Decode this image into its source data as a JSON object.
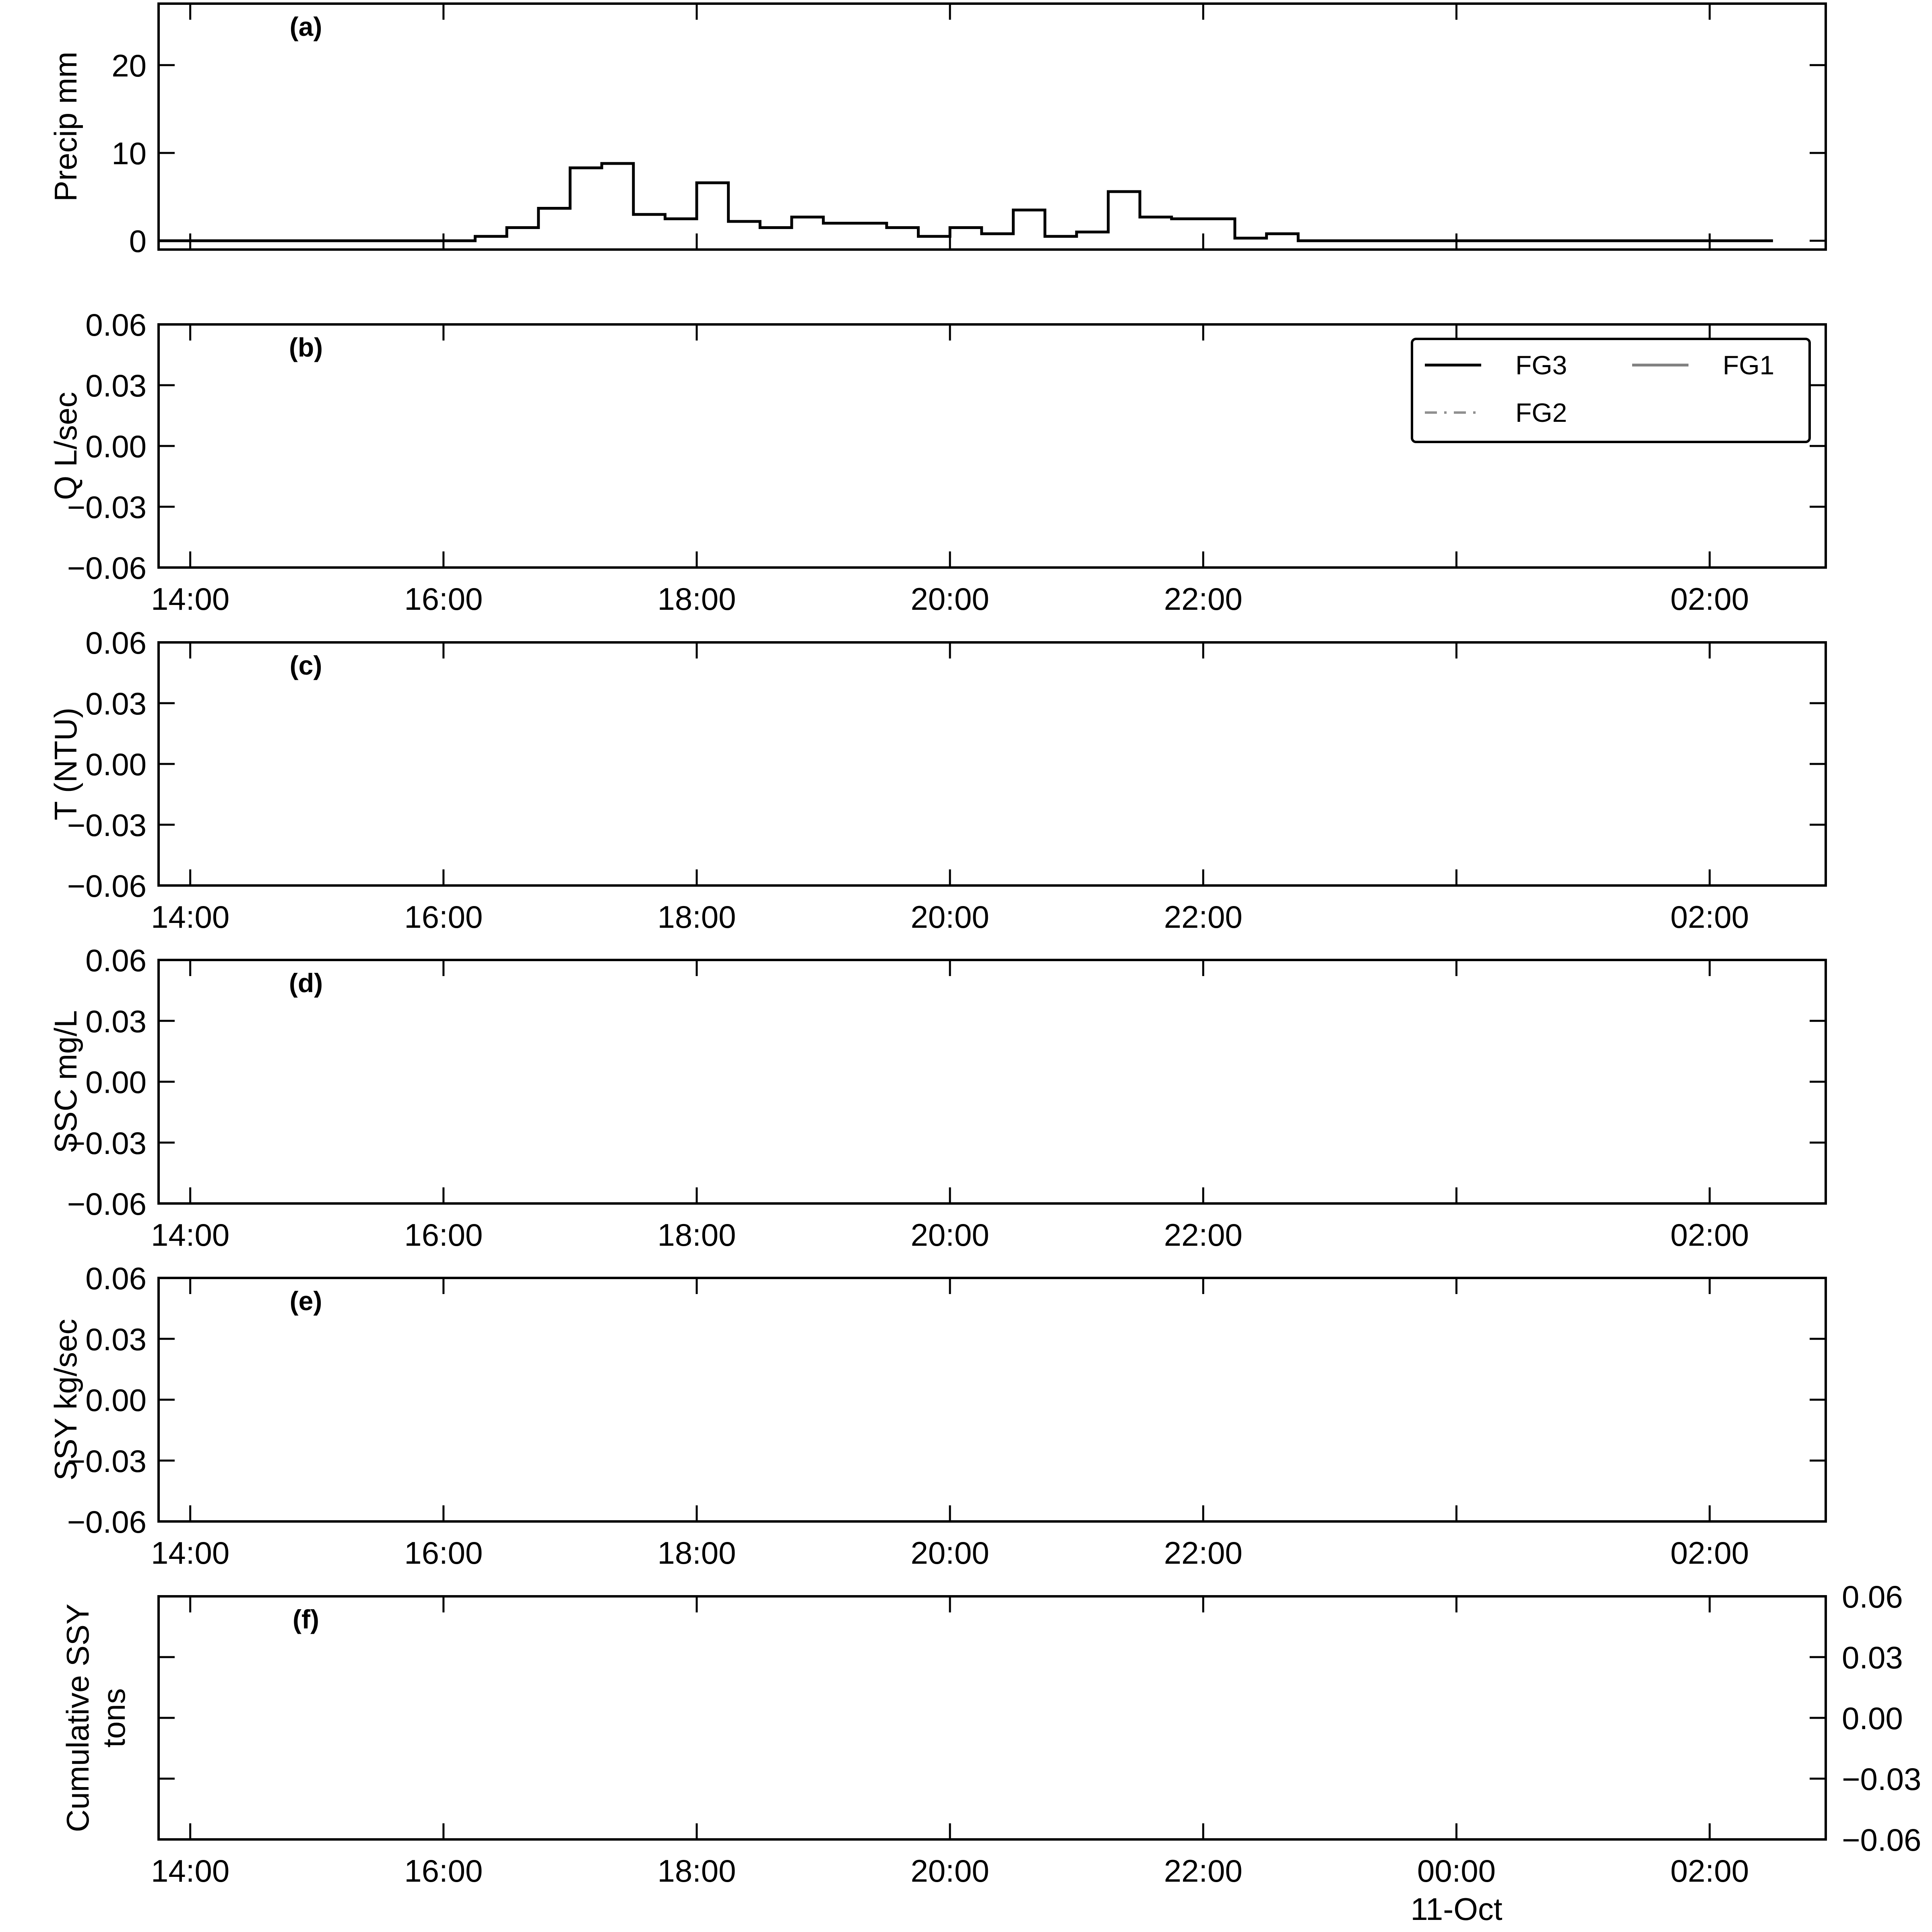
{
  "chart_data": [
    {
      "panel": "(a)",
      "type": "step",
      "ylabel": "Precip mm",
      "ylim": [
        -1,
        27
      ],
      "yticks": [
        "0",
        "10",
        "20"
      ],
      "xlim": [
        "13:45",
        "02:55"
      ],
      "x": [
        "13:45",
        "14:00",
        "14:15",
        "14:30",
        "14:45",
        "15:00",
        "15:15",
        "15:30",
        "15:45",
        "16:00",
        "16:15",
        "16:30",
        "16:45",
        "17:00",
        "17:15",
        "17:30",
        "17:45",
        "18:00",
        "18:15",
        "18:30",
        "18:45",
        "19:00",
        "19:15",
        "19:30",
        "19:45",
        "20:00",
        "20:15",
        "20:30",
        "20:45",
        "21:00",
        "21:15",
        "21:30",
        "21:45",
        "22:00",
        "22:15",
        "22:30",
        "22:45",
        "23:00",
        "23:15",
        "23:30",
        "23:45",
        "00:00",
        "00:15",
        "00:30",
        "00:45",
        "01:00",
        "01:15",
        "01:30",
        "01:45",
        "02:00",
        "02:15"
      ],
      "series": [
        {
          "name": "FG3",
          "values": [
            0,
            0,
            0,
            0,
            0,
            0,
            0,
            0,
            0,
            0,
            0.5,
            1.5,
            3.7,
            8.3,
            8.8,
            3,
            2.5,
            6.6,
            2.2,
            1.5,
            2.7,
            2,
            2,
            1.5,
            0.5,
            1.5,
            0.8,
            3.5,
            0.5,
            1,
            5.6,
            2.7,
            2.5,
            2.5,
            0.3,
            0.8,
            0,
            0,
            0,
            0,
            0,
            0,
            0,
            0,
            0,
            0,
            0,
            0,
            0,
            0,
            0
          ]
        }
      ]
    },
    {
      "panel": "(b)",
      "type": "line",
      "ylabel": "Q L/sec",
      "ylim": [
        -0.06,
        0.06
      ],
      "yticks": [
        "0.06",
        "0.03",
        "0.00",
        "−0.03",
        "−0.06"
      ],
      "xticks": [
        "14:00",
        "16:00",
        "18:00",
        "20:00",
        "22:00",
        "",
        "02:00"
      ],
      "legend": [
        "FG3",
        "FG1",
        "FG2"
      ],
      "legend_position": "top-right"
    },
    {
      "panel": "(c)",
      "type": "line",
      "ylabel": "T (NTU)",
      "ylim": [
        -0.06,
        0.06
      ],
      "yticks": [
        "0.06",
        "0.03",
        "0.00",
        "−0.03",
        "−0.06"
      ],
      "xticks": [
        "14:00",
        "16:00",
        "18:00",
        "20:00",
        "22:00",
        "",
        "02:00"
      ]
    },
    {
      "panel": "(d)",
      "type": "line",
      "ylabel": "SSC mg/L",
      "ylim": [
        -0.06,
        0.06
      ],
      "yticks": [
        "0.06",
        "0.03",
        "0.00",
        "−0.03",
        "−0.06"
      ],
      "xticks": [
        "14:00",
        "16:00",
        "18:00",
        "20:00",
        "22:00",
        "",
        "02:00"
      ]
    },
    {
      "panel": "(e)",
      "type": "line",
      "ylabel": "SSY kg/sec",
      "ylim": [
        -0.06,
        0.06
      ],
      "yticks": [
        "0.06",
        "0.03",
        "0.00",
        "−0.03",
        "−0.06"
      ],
      "xticks": [
        "14:00",
        "16:00",
        "18:00",
        "20:00",
        "22:00",
        "",
        "02:00"
      ]
    },
    {
      "panel": "(f)",
      "type": "line",
      "ylabel": [
        "Cumulative SSY",
        "tons"
      ],
      "ylim": [
        -0.06,
        0.06
      ],
      "yticks": [
        "0.06",
        "0.03",
        "0.00",
        "−0.03",
        "−0.06"
      ],
      "yaxis_side": "right",
      "xticks": [
        "14:00",
        "16:00",
        "18:00",
        "20:00",
        "22:00",
        "00:00",
        "02:00"
      ],
      "xdate_label": "11-Oct"
    }
  ],
  "legend": {
    "entries": [
      {
        "name": "FG3",
        "style": "solid",
        "color": "#000000"
      },
      {
        "name": "FG1",
        "style": "solid",
        "color": "#808080"
      },
      {
        "name": "FG2",
        "style": "dashdot",
        "color": "#909090"
      }
    ]
  }
}
